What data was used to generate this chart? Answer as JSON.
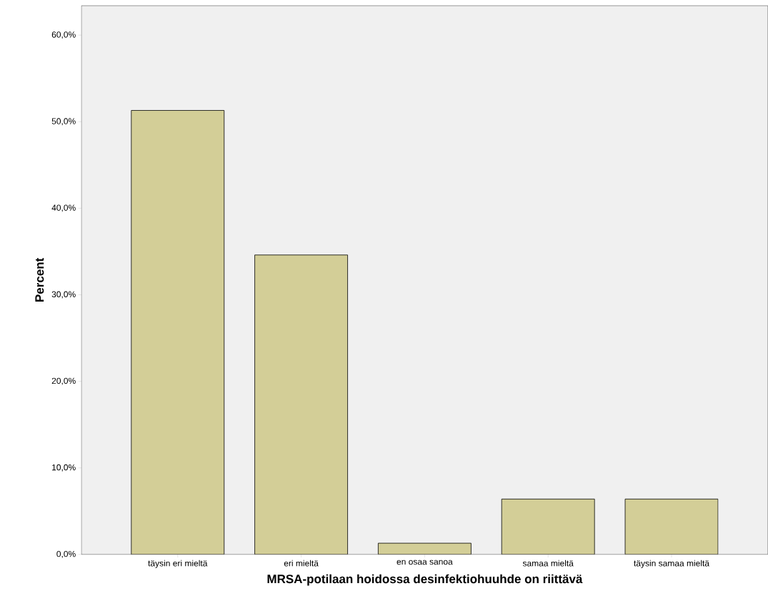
{
  "chart_data": {
    "type": "bar",
    "xlabel": "MRSA-potilaan hoidossa desinfektiohuuhde on riittävä",
    "ylabel": "Percent",
    "categories": [
      "täysin eri mieltä",
      "eri mieltä",
      "en osaa sanoa",
      "samaa mieltä",
      "täysin samaa mieltä"
    ],
    "values": [
      51.3,
      34.6,
      1.3,
      6.4,
      6.4
    ],
    "color": "#d3ce97",
    "ylim": [
      0,
      63.4
    ],
    "yticks": [
      {
        "value": 0,
        "label": "0,0%"
      },
      {
        "value": 10,
        "label": "10,0%"
      },
      {
        "value": 20,
        "label": "20,0%"
      },
      {
        "value": 30,
        "label": "30,0%"
      },
      {
        "value": 40,
        "label": "40,0%"
      },
      {
        "value": 50,
        "label": "50,0%"
      },
      {
        "value": 60,
        "label": "60,0%"
      }
    ],
    "grid": false
  }
}
